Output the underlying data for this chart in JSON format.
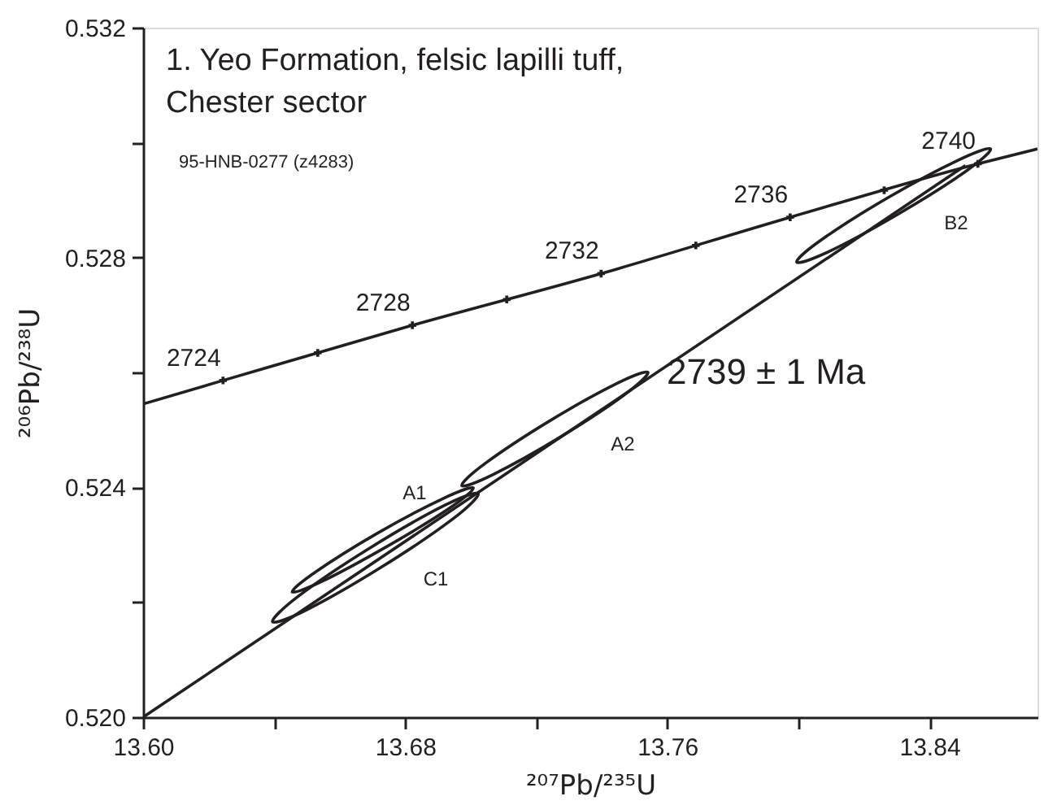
{
  "chart_data": {
    "type": "line",
    "title": "1. Yeo Formation, felsic lapilli tuff,\nChester sector",
    "subtitle": "95-HNB-0277 (z4283)",
    "xlabel": "²⁰⁷Pb/²³⁵U",
    "ylabel": "²⁰⁶Pb/²³⁸U",
    "xlim": [
      13.6,
      13.873
    ],
    "ylim": [
      0.52,
      0.532
    ],
    "xticks": [
      {
        "value": 13.6,
        "label": "13.60"
      },
      {
        "value": 13.64,
        "label": null
      },
      {
        "value": 13.68,
        "label": "13.68"
      },
      {
        "value": 13.72,
        "label": null
      },
      {
        "value": 13.76,
        "label": "13.76"
      },
      {
        "value": 13.8,
        "label": null
      },
      {
        "value": 13.84,
        "label": "13.84"
      }
    ],
    "yticks": [
      {
        "value": 0.52,
        "label": "0.520"
      },
      {
        "value": 0.522,
        "label": null
      },
      {
        "value": 0.524,
        "label": "0.524"
      },
      {
        "value": 0.526,
        "label": null
      },
      {
        "value": 0.528,
        "label": "0.528"
      },
      {
        "value": 0.53,
        "label": null
      },
      {
        "value": 0.532,
        "label": "0.532"
      }
    ],
    "series": [
      {
        "color": "#231f20",
        "x": [
          13.6,
          13.6244,
          13.6822,
          13.7398,
          13.7975,
          13.8548,
          13.873
        ],
        "values": [
          0.52545,
          0.52586,
          0.52682,
          0.52772,
          0.5287,
          0.52963,
          0.52989
        ]
      },
      {
        "type": "scatter",
        "marker": "cross",
        "color": "#231f20",
        "x": [
          13.6244,
          13.6533,
          13.6822,
          13.711,
          13.7398,
          13.7687,
          13.7975,
          13.8262,
          13.8548
        ],
        "values": [
          0.52586,
          0.52634,
          0.52682,
          0.52727,
          0.52772,
          0.52821,
          0.5287,
          0.52917,
          0.52963
        ]
      },
      {
        "color": "#231f20",
        "x": [
          13.6,
          13.851
        ],
        "values": [
          0.52,
          0.5296
        ]
      }
    ],
    "annotations": [
      {
        "text": "2724",
        "x": 13.6244,
        "y": 0.52586
      },
      {
        "text": "2728",
        "x": 13.6822,
        "y": 0.52682
      },
      {
        "text": "2732",
        "x": 13.7398,
        "y": 0.52772
      },
      {
        "text": "2736",
        "x": 13.7975,
        "y": 0.5287
      },
      {
        "text": "2740",
        "x": 13.8548,
        "y": 0.52963
      },
      "A1",
      "A2",
      "C1",
      "B2",
      "2739 ± 1 Ma"
    ]
  }
}
